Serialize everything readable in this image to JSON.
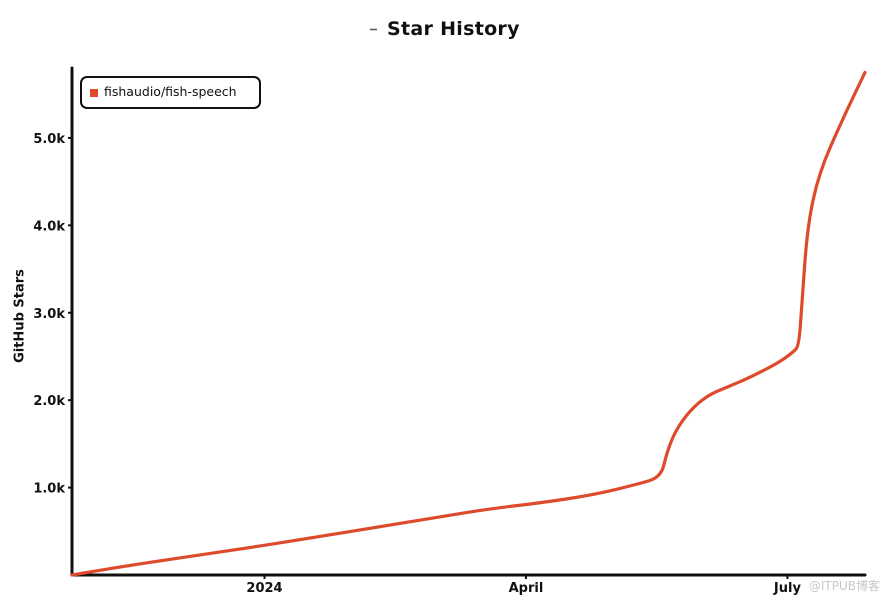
{
  "chart_data": {
    "type": "line",
    "title": "Star History",
    "ylabel": "GitHub Stars",
    "xlabel": "",
    "legend": "top-left",
    "grid": false,
    "ylim": [
      0,
      5800
    ],
    "xlim": [
      "2023-10-26",
      "2024-07-28"
    ],
    "x_ticks": [
      {
        "date": "2024-01-01",
        "label": "2024"
      },
      {
        "date": "2024-04-01",
        "label": "April"
      },
      {
        "date": "2024-07-01",
        "label": "July"
      }
    ],
    "y_ticks": [
      {
        "value": 1000,
        "label": "1.0k"
      },
      {
        "value": 2000,
        "label": "2.0k"
      },
      {
        "value": 3000,
        "label": "3.0k"
      },
      {
        "value": 4000,
        "label": "4.0k"
      },
      {
        "value": 5000,
        "label": "5.0k"
      }
    ],
    "series": [
      {
        "name": "fishaudio/fish-speech",
        "color": "#dd4b2c",
        "points": [
          [
            "2023-10-26",
            0
          ],
          [
            "2023-11-15",
            110
          ],
          [
            "2023-12-10",
            230
          ],
          [
            "2024-01-01",
            340
          ],
          [
            "2024-01-20",
            440
          ],
          [
            "2024-02-10",
            550
          ],
          [
            "2024-03-01",
            660
          ],
          [
            "2024-03-20",
            760
          ],
          [
            "2024-04-05",
            820
          ],
          [
            "2024-04-25",
            920
          ],
          [
            "2024-05-10",
            1040
          ],
          [
            "2024-05-18",
            1120
          ],
          [
            "2024-05-20",
            1400
          ],
          [
            "2024-05-23",
            1650
          ],
          [
            "2024-05-28",
            1880
          ],
          [
            "2024-06-03",
            2050
          ],
          [
            "2024-06-10",
            2150
          ],
          [
            "2024-06-18",
            2260
          ],
          [
            "2024-06-28",
            2430
          ],
          [
            "2024-07-03",
            2550
          ],
          [
            "2024-07-05",
            2620
          ],
          [
            "2024-07-06",
            3100
          ],
          [
            "2024-07-08",
            4000
          ],
          [
            "2024-07-12",
            4600
          ],
          [
            "2024-07-20",
            5200
          ],
          [
            "2024-07-28",
            5750
          ]
        ]
      }
    ]
  },
  "watermark": "@ITPUB博客"
}
